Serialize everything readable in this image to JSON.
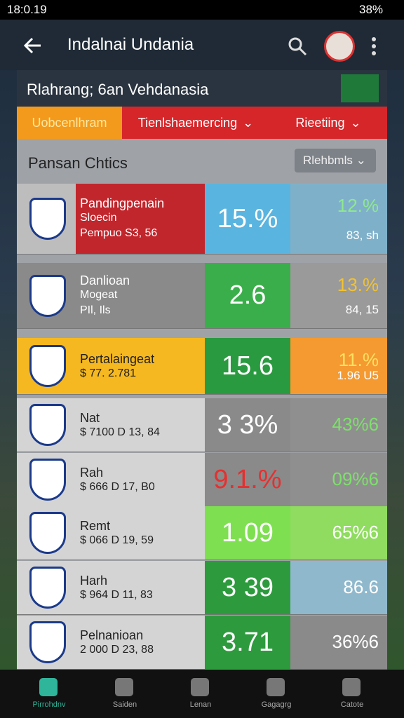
{
  "status": {
    "time": "18:0.19",
    "battery": "38%"
  },
  "appbar": {
    "title": "Indalnai Undania"
  },
  "header": {
    "title": "Rlahrang; 6an Vehdanasia"
  },
  "tabs": [
    "Uobcenlhram",
    "Tienlshaemercing",
    "Rieetiing"
  ],
  "panel": {
    "title": "Pansan Chtics",
    "dropdown": "Rlehbmls",
    "rows": [
      {
        "name": "Pandingpenain",
        "lines": [
          "Sloecin",
          "Pempuo S3, 56"
        ],
        "stat": "15.%",
        "stat2": "12.%",
        "sub": "83, sh"
      },
      {
        "name": "Danlioan",
        "lines": [
          "Mogeat",
          "PIl, Ils"
        ],
        "stat": "2.6",
        "stat2": "13.%",
        "sub": "84, 15"
      },
      {
        "name": "Pertalaingeat",
        "lines": [
          "$ 77. 2.781"
        ],
        "stat": "15.6",
        "stat2": "11.%",
        "sub": "1.96 U5"
      },
      {
        "name": "Nat",
        "lines": [
          "$ 7100 D 13, 84"
        ],
        "stat": "3 3%",
        "stat2": "43%6"
      },
      {
        "name": "Rah",
        "lines": [
          "$ 666 D 17, B0"
        ],
        "stat": "9.1.%",
        "stat2": "09%6"
      },
      {
        "name": "Remt",
        "lines": [
          "$ 066 D 19, 59"
        ],
        "stat": "1.09",
        "stat2": "65%6"
      },
      {
        "name": "Harh",
        "lines": [
          "$ 964 D 11, 83"
        ],
        "stat": "3 39",
        "stat2": "86.6"
      },
      {
        "name": "Pelnanioan",
        "lines": [
          "2 000 D 23, 88"
        ],
        "stat": "3.71",
        "stat2": "36%6"
      }
    ]
  },
  "nav": [
    "Pirrohdnv",
    "Saiden",
    "Lenan",
    "Gagagrg",
    "Catote"
  ]
}
